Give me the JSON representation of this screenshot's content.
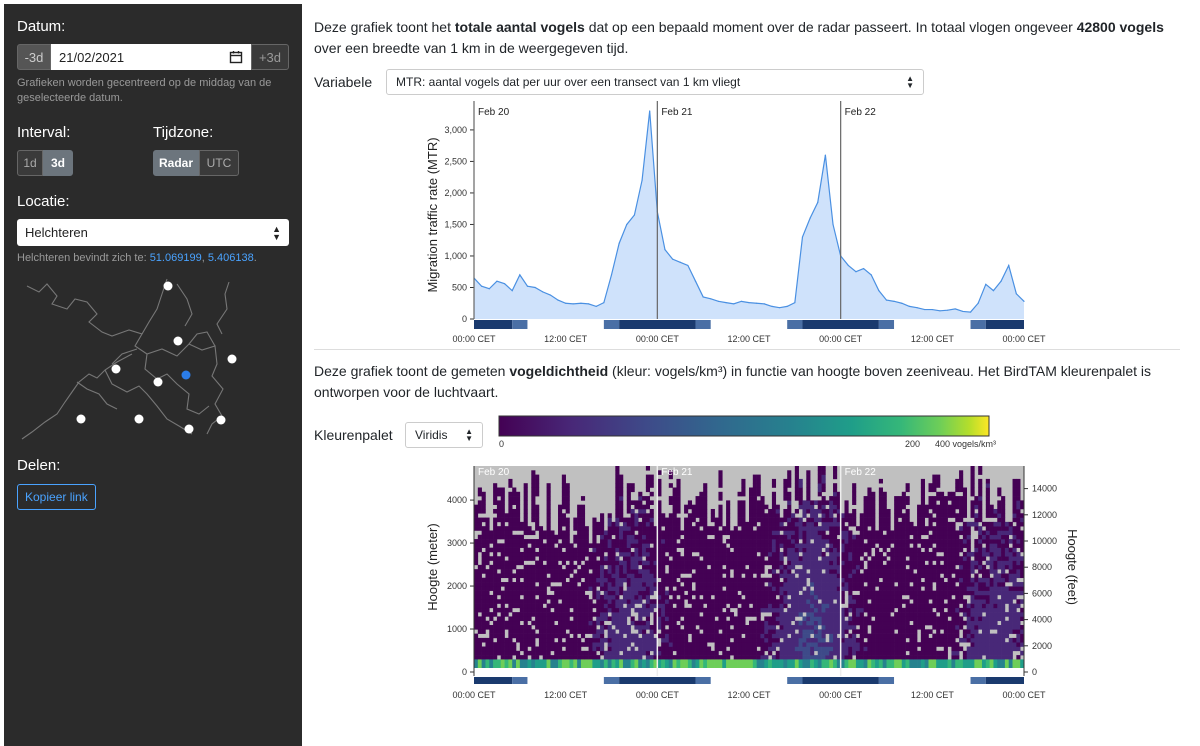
{
  "sidebar": {
    "date_label": "Datum:",
    "minus_btn": "-3d",
    "date_value": "21/02/2021",
    "calendar_icon": "calendar-icon",
    "plus_btn": "+3d",
    "date_help": "Grafieken worden gecentreerd op de middag van de geselecteerde datum.",
    "interval_label": "Interval:",
    "interval_options": [
      "1d",
      "3d"
    ],
    "interval_selected": "3d",
    "timezone_label": "Tijdzone:",
    "timezone_options": [
      "Radar",
      "UTC"
    ],
    "timezone_selected": "Radar",
    "location_label": "Locatie:",
    "location_value": "Helchteren",
    "location_prefix": "Helchteren bevindt zich te: ",
    "lat": "51.069199",
    "lon": "5.406138",
    "share_label": "Delen:",
    "copy_link": "Kopieer link"
  },
  "mtr": {
    "intro_a": "Deze grafiek toont het ",
    "intro_b": "totale aantal vogels",
    "intro_c": " dat op een bepaald moment over de radar passeert. In totaal vlogen ongeveer ",
    "intro_d": "42800 vogels",
    "intro_e": " over een breedte van 1 km in de weergegeven tijd.",
    "variable_label": "Variabele",
    "variable_value": "MTR: aantal vogels dat per uur over een transect van 1 km vliegt"
  },
  "vpi": {
    "intro_a": "Deze grafiek toont de gemeten ",
    "intro_b": "vogeldichtheid",
    "intro_c": " (kleur: vogels/km³) in functie van hoogte boven zeeniveau. Het BirdTAM kleurenpalet is ontworpen voor de luchtvaart.",
    "palette_label": "Kleurenpalet",
    "palette_value": "Viridis",
    "scale_ticks": [
      "0",
      "200",
      "400 vogels/km³"
    ]
  },
  "chart_data": [
    {
      "type": "area",
      "ylabel": "Migration traffic rate (MTR)",
      "ylim": [
        0,
        3300
      ],
      "yticks": [
        "0",
        "500",
        "1,000",
        "1,500",
        "2,000",
        "2,500",
        "3,000"
      ],
      "xtick_labels": [
        "00:00 CET",
        "12:00 CET",
        "00:00 CET",
        "12:00 CET",
        "00:00 CET",
        "12:00 CET",
        "00:00 CET"
      ],
      "day_labels": [
        "Feb 20",
        "Feb 21",
        "Feb 22"
      ],
      "x_hours": [
        0,
        1,
        2,
        3,
        4,
        5,
        6,
        7,
        8,
        9,
        10,
        11,
        12,
        13,
        14,
        15,
        16,
        17,
        18,
        19,
        20,
        21,
        22,
        23,
        24,
        25,
        26,
        27,
        28,
        29,
        30,
        31,
        32,
        33,
        34,
        35,
        36,
        37,
        38,
        39,
        40,
        41,
        42,
        43,
        44,
        45,
        46,
        47,
        48,
        49,
        50,
        51,
        52,
        53,
        54,
        55,
        56,
        57,
        58,
        59,
        60,
        61,
        62,
        63,
        64,
        65,
        66,
        67,
        68,
        69,
        70,
        71,
        72
      ],
      "values": [
        650,
        520,
        480,
        600,
        560,
        450,
        700,
        520,
        500,
        430,
        380,
        300,
        250,
        240,
        250,
        240,
        200,
        260,
        700,
        1200,
        1500,
        1650,
        2200,
        3300,
        1700,
        1100,
        950,
        900,
        850,
        600,
        350,
        320,
        280,
        260,
        240,
        280,
        260,
        250,
        240,
        200,
        180,
        200,
        260,
        1300,
        1600,
        1850,
        2600,
        1500,
        1000,
        850,
        750,
        800,
        700,
        450,
        300,
        280,
        250,
        200,
        180,
        150,
        150,
        130,
        140,
        160,
        120,
        110,
        250,
        550,
        450,
        600,
        850,
        400,
        280
      ],
      "color": "#4a90e2",
      "fill": "#cfe2fb"
    },
    {
      "type": "heatmap",
      "ylabel": "Hoogte (meter)",
      "y2label": "Hoogte (feet)",
      "yticks": [
        "0",
        "1000",
        "2000",
        "3000",
        "4000"
      ],
      "y2ticks": [
        "0",
        "2000",
        "4000",
        "6000",
        "8000",
        "10000",
        "12000",
        "14000"
      ],
      "xtick_labels": [
        "00:00 CET",
        "12:00 CET",
        "00:00 CET",
        "12:00 CET",
        "00:00 CET",
        "12:00 CET",
        "00:00 CET"
      ],
      "day_labels": [
        "Feb 20",
        "Feb 21",
        "Feb 22"
      ],
      "colormap": "viridis",
      "scale_range": [
        0,
        400
      ]
    }
  ],
  "colors": {
    "sidebar_bg": "#2b2b2b",
    "accent": "#4aa3ff",
    "night": "#1a3a6e",
    "twilight": "#4a6fa5",
    "map_dot_active": "#2b7de9"
  }
}
